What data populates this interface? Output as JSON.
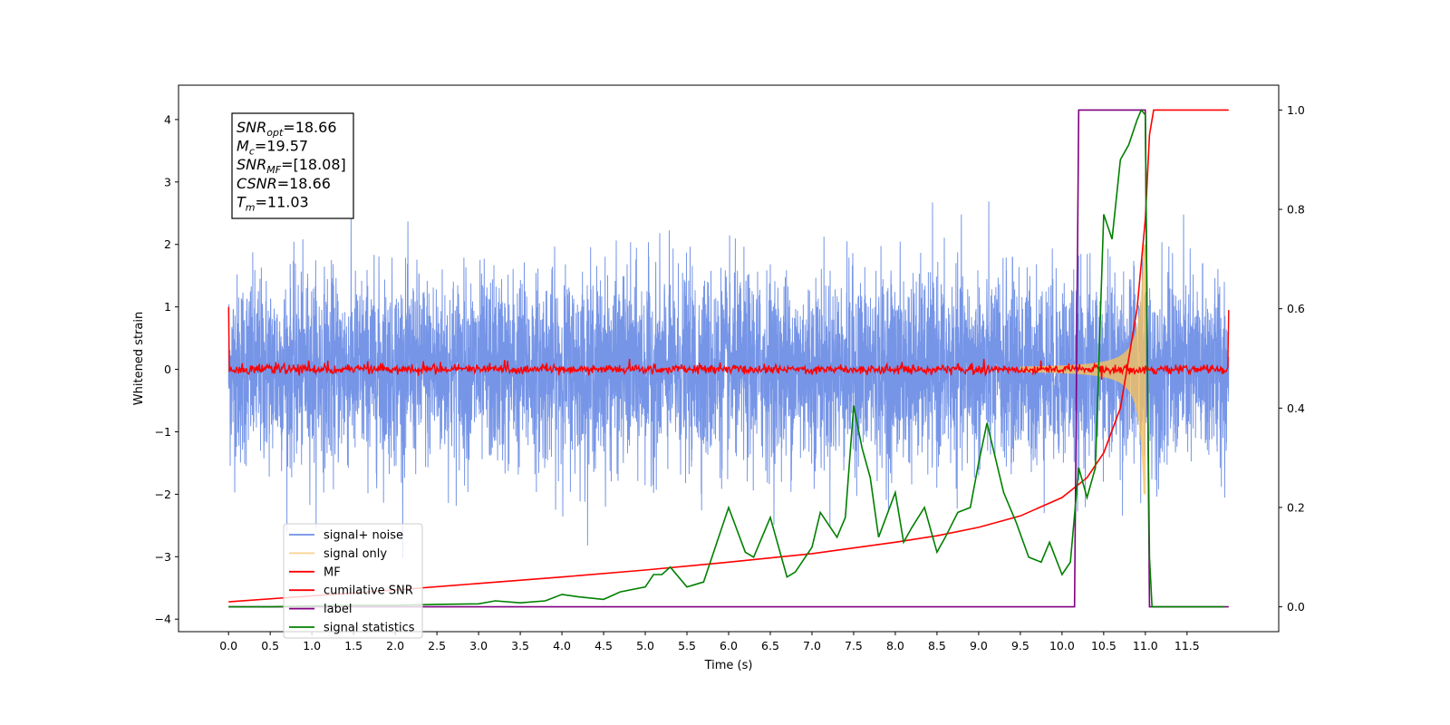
{
  "chart_data": {
    "type": "line",
    "title": "",
    "xlabel": "Time (s)",
    "ylabel": "Whitened strain",
    "y2label": "",
    "xlim": [
      -0.6,
      12.6
    ],
    "ylim": [
      -4.2,
      4.55
    ],
    "y2lim": [
      -0.05,
      1.05
    ],
    "xticks": [
      "0.0",
      "0.5",
      "1.0",
      "1.5",
      "2.0",
      "2.5",
      "3.0",
      "3.5",
      "4.0",
      "4.5",
      "5.0",
      "5.5",
      "6.0",
      "6.5",
      "7.0",
      "7.5",
      "8.0",
      "8.5",
      "9.0",
      "9.5",
      "10.0",
      "10.5",
      "11.0",
      "11.5"
    ],
    "yticks": [
      "−4",
      "−3",
      "−2",
      "−1",
      "0",
      "1",
      "2",
      "3",
      "4"
    ],
    "y2ticks": [
      "0.0",
      "0.2",
      "0.4",
      "0.6",
      "0.8",
      "1.0"
    ],
    "grid": false,
    "legend_position": "lower-left",
    "annotation": {
      "lines": [
        {
          "sym": "SNR",
          "sub": "opt",
          "value": "=18.66"
        },
        {
          "sym": "M",
          "sub": "c",
          "value": "=19.57"
        },
        {
          "sym": "SNR",
          "sub": "MF",
          "value": "=[18.08]"
        },
        {
          "sym": "CSNR",
          "sub": "",
          "value": "=18.66"
        },
        {
          "sym": "T",
          "sub": "m",
          "value": "=11.03"
        }
      ]
    },
    "series": [
      {
        "name": "signal+ noise",
        "color": "#6f8fe6",
        "axis": "left",
        "kind": "noise",
        "t_range": [
          0.0,
          12.0
        ],
        "sigma": 0.75,
        "peak_max": 4.15,
        "peak_min": -3.95
      },
      {
        "name": "signal only",
        "color": "#f5c060",
        "axis": "left",
        "kind": "chirp",
        "t_range": [
          9.5,
          11.0
        ],
        "max_amplitude": 2.0
      },
      {
        "name": "MF",
        "color": "#ff0000",
        "axis": "left",
        "kind": "mf",
        "t_range": [
          0.0,
          12.0
        ],
        "level": 0.0,
        "start": 1.0,
        "end": 0.95
      },
      {
        "name": "cumilative SNR",
        "color": "#ff0000",
        "axis": "right",
        "x": [
          0.0,
          1.0,
          2.0,
          3.0,
          4.0,
          5.0,
          6.0,
          7.0,
          8.0,
          8.5,
          9.0,
          9.5,
          10.0,
          10.3,
          10.5,
          10.7,
          10.9,
          11.0,
          11.05,
          11.1,
          12.0
        ],
        "y": [
          0.01,
          0.022,
          0.034,
          0.047,
          0.06,
          0.074,
          0.09,
          0.107,
          0.13,
          0.143,
          0.16,
          0.183,
          0.22,
          0.26,
          0.31,
          0.4,
          0.6,
          0.78,
          0.95,
          1.0,
          1.0
        ]
      },
      {
        "name": "label",
        "color": "#800080",
        "axis": "right",
        "x": [
          0.0,
          10.15,
          10.2,
          11.0,
          11.05,
          12.0
        ],
        "y": [
          0.0,
          0.0,
          1.0,
          1.0,
          0.0,
          0.0
        ]
      },
      {
        "name": "signal statistics",
        "color": "#008000",
        "axis": "right",
        "x": [
          0.0,
          0.5,
          1.0,
          1.5,
          2.0,
          2.5,
          3.0,
          3.2,
          3.5,
          3.8,
          4.0,
          4.2,
          4.5,
          4.7,
          5.0,
          5.1,
          5.2,
          5.3,
          5.5,
          5.7,
          5.9,
          6.0,
          6.2,
          6.3,
          6.5,
          6.7,
          6.8,
          7.0,
          7.1,
          7.3,
          7.4,
          7.5,
          7.6,
          7.7,
          7.8,
          8.0,
          8.1,
          8.2,
          8.35,
          8.5,
          8.6,
          8.75,
          8.9,
          9.0,
          9.1,
          9.2,
          9.3,
          9.45,
          9.6,
          9.75,
          9.85,
          10.0,
          10.1,
          10.2,
          10.3,
          10.4,
          10.5,
          10.6,
          10.7,
          10.8,
          10.9,
          10.95,
          11.0,
          11.03,
          11.05,
          11.08,
          11.1,
          11.5,
          11.95
        ],
        "y": [
          0.0,
          0.0,
          0.002,
          0.003,
          0.003,
          0.005,
          0.006,
          0.012,
          0.008,
          0.012,
          0.025,
          0.02,
          0.015,
          0.03,
          0.04,
          0.065,
          0.065,
          0.08,
          0.04,
          0.05,
          0.15,
          0.2,
          0.11,
          0.1,
          0.18,
          0.06,
          0.07,
          0.12,
          0.19,
          0.14,
          0.18,
          0.405,
          0.32,
          0.26,
          0.14,
          0.23,
          0.13,
          0.16,
          0.2,
          0.11,
          0.14,
          0.19,
          0.2,
          0.29,
          0.37,
          0.3,
          0.23,
          0.17,
          0.1,
          0.09,
          0.13,
          0.065,
          0.09,
          0.28,
          0.22,
          0.28,
          0.79,
          0.74,
          0.9,
          0.93,
          0.98,
          1.0,
          0.99,
          0.4,
          0.1,
          0.0,
          0.0,
          0.0,
          0.0
        ]
      }
    ]
  }
}
